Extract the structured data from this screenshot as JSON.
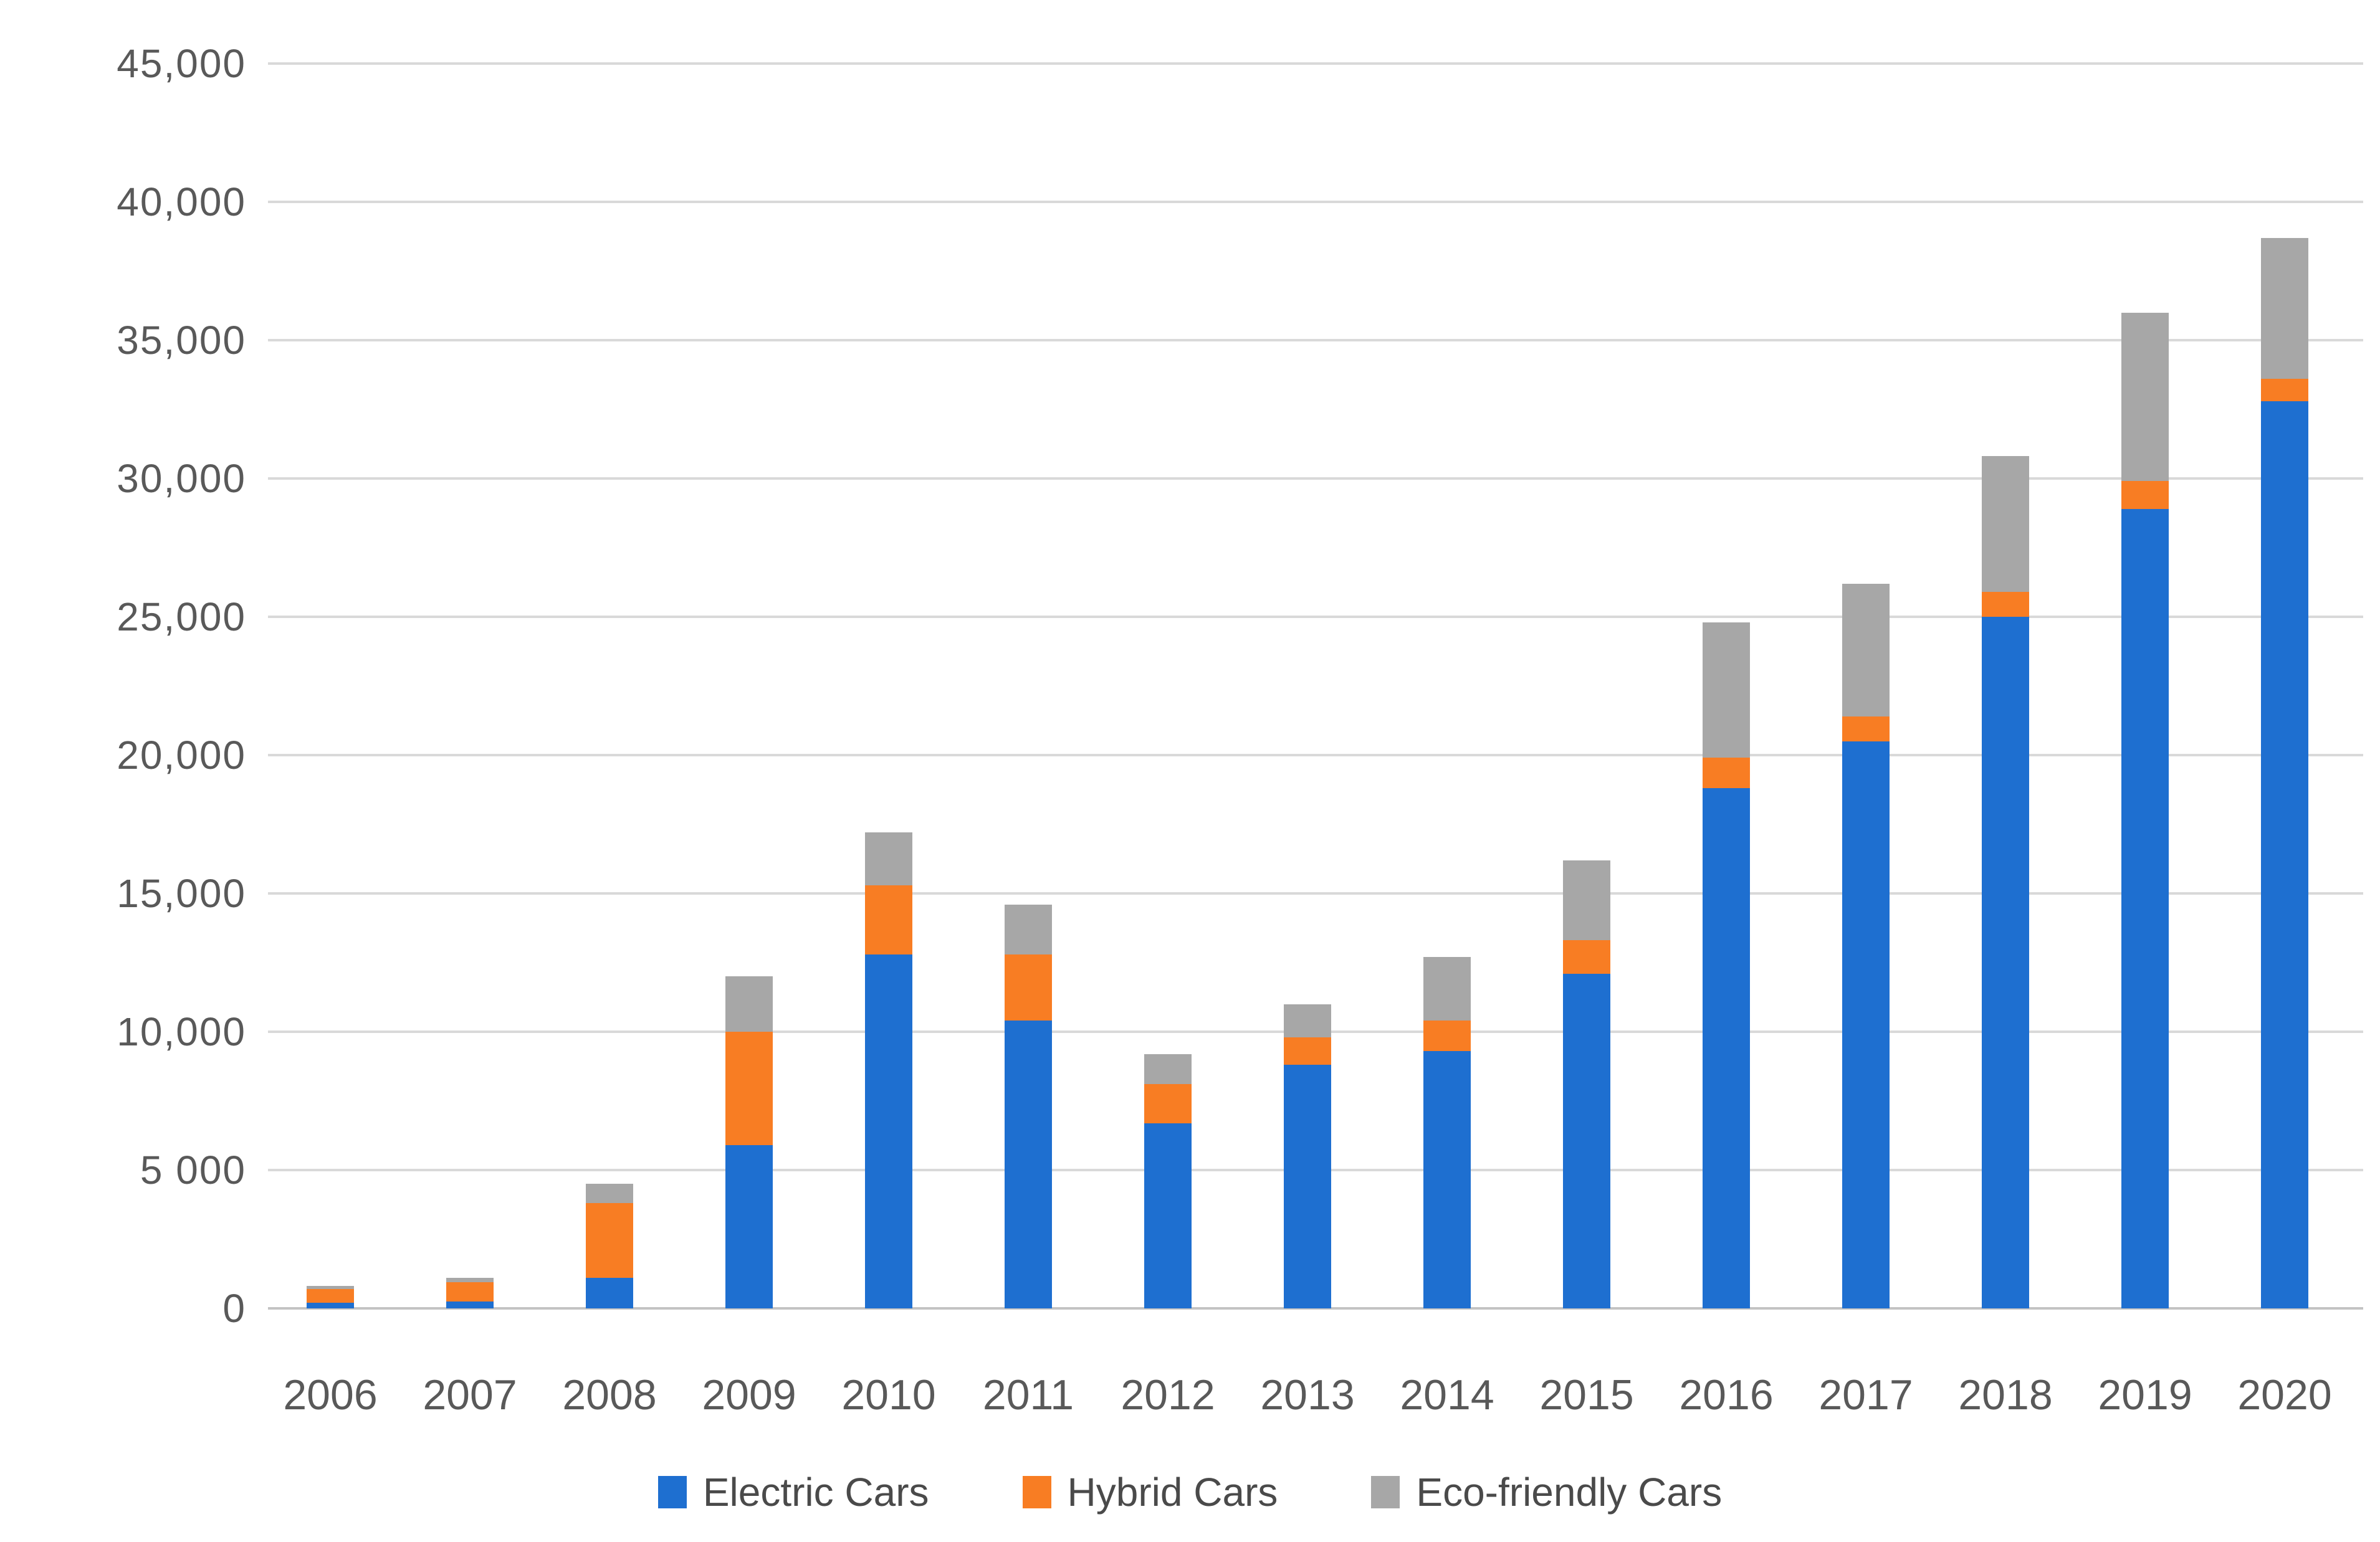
{
  "chart_data": {
    "type": "bar",
    "stacked": true,
    "title": "",
    "xlabel": "",
    "ylabel": "",
    "categories": [
      "2006",
      "2007",
      "2008",
      "2009",
      "2010",
      "2011",
      "2012",
      "2013",
      "2014",
      "2015",
      "2016",
      "2017",
      "2018",
      "2019",
      "2020"
    ],
    "series": [
      {
        "name": "Electric Cars",
        "color": "#1e6fd0",
        "values": [
          200,
          250,
          1100,
          5900,
          12800,
          10400,
          6700,
          8800,
          9300,
          12100,
          18800,
          20500,
          25000,
          28900,
          32800
        ]
      },
      {
        "name": "Hybrid Cars",
        "color": "#f87d23",
        "values": [
          500,
          700,
          2700,
          4100,
          2500,
          2400,
          1400,
          1000,
          1100,
          1200,
          1100,
          900,
          900,
          1000,
          800
        ]
      },
      {
        "name": "Eco-friendly Cars",
        "color": "#a7a7a7",
        "values": [
          100,
          150,
          700,
          2000,
          1900,
          1800,
          1100,
          1200,
          2300,
          2900,
          4900,
          4800,
          4900,
          6100,
          5100
        ]
      }
    ],
    "totals": [
      800,
      1100,
      4500,
      12000,
      17200,
      14600,
      9200,
      11000,
      12700,
      16200,
      24800,
      26200,
      30800,
      36000,
      38700
    ],
    "y_axis": {
      "min": 0,
      "max": 45000,
      "step": 5000,
      "tick_labels_bottom_to_top": [
        "0",
        "5 000",
        "10,000",
        "15,000",
        "20,000",
        "25,000",
        "30,000",
        "35,000",
        "40,000",
        "45,000"
      ]
    },
    "grid": true,
    "legend_position": "bottom",
    "background_color": "#ffffff",
    "gridline_color": "#d9d9d9",
    "tick_label_color": "#595959"
  }
}
